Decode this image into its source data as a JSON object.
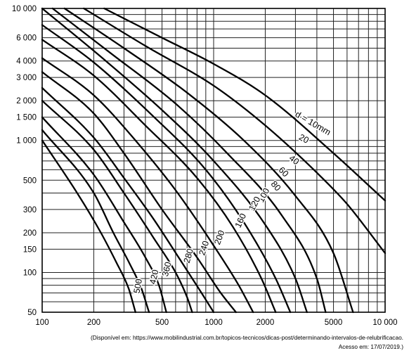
{
  "chart_data": {
    "type": "line",
    "x_scale": "log",
    "y_scale": "log",
    "xlim": [
      100,
      10000
    ],
    "ylim": [
      50,
      10000
    ],
    "x_ticks": [
      100,
      200,
      500,
      1000,
      2000,
      5000,
      10000
    ],
    "x_tick_labels": [
      "100",
      "200",
      "500",
      "1000",
      "2000",
      "5000",
      "10 000"
    ],
    "y_ticks": [
      50,
      100,
      150,
      200,
      300,
      500,
      1000,
      1500,
      2000,
      3000,
      4000,
      6000,
      10000
    ],
    "y_tick_labels": [
      "50",
      "100",
      "150",
      "200",
      "300",
      "500",
      "1 000",
      "1 500",
      "2 000",
      "3 000",
      "4 000",
      "6 000",
      "10 000"
    ],
    "grid": true,
    "series": [
      {
        "name": "d = 10mm",
        "x": [
          230,
          500,
          1000,
          2000,
          5000,
          10000
        ],
        "y": [
          10000,
          6000,
          3800,
          2200,
          800,
          350
        ]
      },
      {
        "name": "20",
        "x": [
          175,
          400,
          1000,
          2000,
          4000,
          6000,
          10000
        ],
        "y": [
          10000,
          5200,
          2600,
          1300,
          570,
          330,
          140
        ]
      },
      {
        "name": "40",
        "x": [
          135,
          300,
          700,
          1500,
          3000,
          5000,
          6500
        ],
        "y": [
          10000,
          5000,
          2300,
          1000,
          380,
          140,
          50
        ]
      },
      {
        "name": "60",
        "x": [
          115,
          250,
          600,
          1200,
          2500,
          4000,
          4500
        ],
        "y": [
          10000,
          4600,
          1900,
          800,
          270,
          90,
          50
        ]
      },
      {
        "name": "80",
        "x": [
          100,
          220,
          500,
          1000,
          2000,
          3000,
          3500
        ],
        "y": [
          10000,
          4300,
          1700,
          700,
          230,
          90,
          50
        ]
      },
      {
        "name": "100",
        "x": [
          100,
          200,
          450,
          900,
          1500,
          2300,
          2800
        ],
        "y": [
          7500,
          3900,
          1500,
          600,
          240,
          90,
          50
        ]
      },
      {
        "name": "120",
        "x": [
          100,
          200,
          400,
          800,
          1300,
          1900,
          2300
        ],
        "y": [
          5800,
          3100,
          1300,
          520,
          220,
          90,
          50
        ]
      },
      {
        "name": "160",
        "x": [
          100,
          200,
          350,
          600,
          1000,
          1400,
          1700
        ],
        "y": [
          4200,
          2200,
          1000,
          420,
          160,
          80,
          50
        ]
      },
      {
        "name": "200",
        "x": [
          100,
          200,
          300,
          500,
          800,
          1100,
          1350
        ],
        "y": [
          3300,
          1600,
          800,
          300,
          130,
          70,
          50
        ]
      },
      {
        "name": "240",
        "x": [
          100,
          200,
          300,
          450,
          650,
          850,
          1000
        ],
        "y": [
          2500,
          1050,
          520,
          250,
          120,
          70,
          50
        ]
      },
      {
        "name": "280",
        "x": [
          100,
          200,
          300,
          450,
          600,
          700,
          750
        ],
        "y": [
          2000,
          850,
          400,
          180,
          100,
          65,
          50
        ]
      },
      {
        "name": "360",
        "x": [
          100,
          200,
          300,
          400,
          480,
          530
        ],
        "y": [
          1500,
          550,
          240,
          130,
          80,
          50
        ]
      },
      {
        "name": "420",
        "x": [
          100,
          200,
          260,
          320,
          380,
          420
        ],
        "y": [
          1200,
          400,
          200,
          120,
          75,
          50
        ]
      },
      {
        "name": "500",
        "x": [
          100,
          160,
          220,
          270,
          320,
          350
        ],
        "y": [
          1000,
          400,
          200,
          120,
          75,
          50
        ]
      }
    ]
  },
  "source": {
    "line1": "(Disponível em: https://www.mobilindustrial.com.br/topicos-tecnicos/dicas-post/determinando-intervalos-de-relubrificacao.",
    "line2": "Acesso em: 17/07/2019.)"
  }
}
